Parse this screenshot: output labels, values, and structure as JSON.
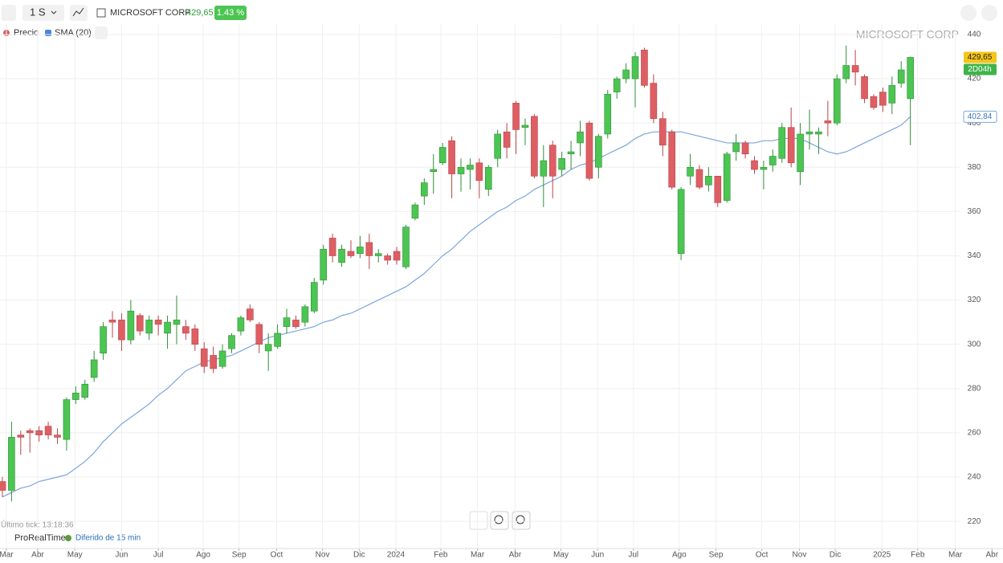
{
  "toolbar": {
    "interval": "1 S",
    "symbol": "MICROSOFT CORP",
    "price": "429,65",
    "change": "1.43 %"
  },
  "footer": {
    "last_tick": "Último tick: 13:18:36",
    "brand": "ProRealTime",
    "delay": "Diferido de 15 min"
  },
  "chart_data": {
    "type": "candlestick",
    "title": "MICROSOFT CORP",
    "name": "Precio",
    "up_color": "#4cc552",
    "down_color": "#dd5f64",
    "open": [
      238,
      234,
      259,
      261,
      261,
      263,
      259,
      257,
      275,
      276,
      285,
      296,
      311,
      311,
      302,
      313,
      305,
      311,
      305,
      309,
      308,
      307,
      298,
      295,
      290,
      298,
      306,
      316,
      309,
      297,
      299,
      308,
      311,
      310,
      315,
      329,
      348,
      337,
      342,
      341,
      346,
      340,
      340,
      342,
      335,
      357,
      367,
      378,
      382,
      392,
      377,
      379,
      382,
      370,
      384,
      396,
      409,
      398,
      403,
      376,
      390,
      379,
      386,
      391,
      400,
      380,
      395,
      414,
      420,
      420,
      433,
      418,
      402,
      396,
      341,
      376,
      379,
      372,
      376,
      365,
      387,
      391,
      383,
      379,
      381,
      384,
      398,
      378,
      395,
      395,
      401,
      400,
      420,
      426,
      421,
      412,
      414,
      409,
      418,
      411
    ],
    "high": [
      240,
      265,
      261,
      262,
      263,
      265,
      262,
      276,
      281,
      284,
      297,
      310,
      315,
      314,
      320,
      314,
      313,
      313,
      313,
      322,
      311,
      309,
      301,
      299,
      300,
      305,
      313,
      318,
      310,
      305,
      309,
      316,
      313,
      318,
      330,
      345,
      350,
      345,
      347,
      349,
      350,
      343,
      341,
      344,
      354,
      364,
      375,
      386,
      391,
      394,
      384,
      384,
      384,
      381,
      397,
      400,
      410,
      402,
      404,
      390,
      392,
      387,
      392,
      401,
      401,
      395,
      415,
      421,
      427,
      432,
      434,
      422,
      405,
      397,
      371,
      386,
      381,
      380,
      376,
      387,
      395,
      392,
      385,
      383,
      388,
      400,
      407,
      400,
      406,
      398,
      410,
      422,
      435,
      433,
      422,
      413,
      416,
      421,
      428,
      430
    ],
    "low": [
      231,
      229,
      250,
      251,
      256,
      257,
      255,
      252,
      273,
      275,
      283,
      293,
      303,
      297,
      300,
      304,
      302,
      304,
      298,
      300,
      302,
      297,
      287,
      287,
      289,
      296,
      304,
      310,
      296,
      288,
      298,
      305,
      307,
      308,
      314,
      327,
      337,
      335,
      339,
      339,
      334,
      337,
      336,
      336,
      334,
      356,
      363,
      368,
      381,
      366,
      369,
      370,
      366,
      367,
      380,
      384,
      386,
      390,
      375,
      362,
      366,
      376,
      379,
      385,
      374,
      375,
      393,
      411,
      418,
      407,
      416,
      400,
      385,
      370,
      338,
      372,
      370,
      369,
      362,
      364,
      383,
      384,
      377,
      370,
      378,
      382,
      380,
      372,
      388,
      386,
      394,
      399,
      418,
      417,
      409,
      406,
      405,
      404,
      416,
      390
    ],
    "close": [
      234,
      258,
      258,
      260,
      259,
      259,
      258,
      275,
      278,
      282,
      293,
      308,
      310,
      302,
      315,
      306,
      311,
      309,
      310,
      311,
      305,
      300,
      290,
      289,
      297,
      304,
      312,
      311,
      300,
      300,
      305,
      312,
      308,
      317,
      328,
      343,
      340,
      343,
      340,
      344,
      340,
      341,
      338,
      338,
      353,
      363,
      373,
      379,
      389,
      377,
      380,
      381,
      374,
      380,
      395,
      389,
      397,
      399,
      376,
      383,
      376,
      384,
      387,
      396,
      375,
      394,
      413,
      420,
      424,
      430,
      417,
      402,
      390,
      371,
      370,
      380,
      371,
      376,
      364,
      386,
      391,
      386,
      379,
      380,
      385,
      398,
      382,
      395,
      396,
      396,
      400,
      420,
      426,
      423,
      411,
      407,
      408,
      417,
      424,
      429.65
    ],
    "sma": {
      "name": "SMA (20)",
      "color": "#7aa6dc",
      "last_label": "402,84",
      "values": [
        231,
        233,
        235,
        236,
        238,
        239,
        240,
        241,
        244,
        247,
        251,
        256,
        260,
        264,
        267,
        270,
        273,
        277,
        280,
        284,
        288,
        290,
        292,
        293,
        294,
        295,
        297,
        299,
        301,
        303,
        304,
        305,
        306,
        307,
        308,
        310,
        311,
        313,
        314,
        316,
        318,
        320,
        322,
        324,
        326,
        329,
        332,
        336,
        340,
        343,
        347,
        351,
        354,
        357,
        360,
        362,
        365,
        367,
        370,
        372,
        374,
        376,
        379,
        381,
        382,
        384,
        386,
        388,
        390,
        393,
        395,
        396,
        396,
        396,
        396,
        395,
        394,
        393,
        392,
        391,
        391,
        391,
        391,
        392,
        392,
        393,
        393,
        393,
        391,
        389,
        387,
        386,
        387,
        389,
        391,
        393,
        395,
        397,
        399,
        402.84
      ]
    },
    "countdown": "2D04h",
    "ylim": [
      207.7,
      444.7
    ],
    "yticks": [
      220,
      240,
      260,
      280,
      300,
      320,
      340,
      360,
      380,
      400,
      420,
      440
    ],
    "xlim": [
      -0.26,
      109.1
    ],
    "xticks": [
      {
        "value": 0.44,
        "label": "Mar"
      },
      {
        "value": 3.85,
        "label": "Abr"
      },
      {
        "value": 7.9,
        "label": "May"
      },
      {
        "value": 13.0,
        "label": "Jun"
      },
      {
        "value": 17.0,
        "label": "Jul"
      },
      {
        "value": 21.9,
        "label": "Ago"
      },
      {
        "value": 25.8,
        "label": "Sep"
      },
      {
        "value": 29.9,
        "label": "Oct"
      },
      {
        "value": 34.9,
        "label": "Nov"
      },
      {
        "value": 38.9,
        "label": "Dic"
      },
      {
        "value": 42.9,
        "label": "2024"
      },
      {
        "value": 47.8,
        "label": "Feb"
      },
      {
        "value": 51.8,
        "label": "Mar"
      },
      {
        "value": 55.9,
        "label": "Abr"
      },
      {
        "value": 60.9,
        "label": "May"
      },
      {
        "value": 64.9,
        "label": "Jun"
      },
      {
        "value": 68.8,
        "label": "Jul"
      },
      {
        "value": 73.8,
        "label": "Ago"
      },
      {
        "value": 77.8,
        "label": "Sep"
      },
      {
        "value": 82.8,
        "label": "Oct"
      },
      {
        "value": 86.9,
        "label": "Nov"
      },
      {
        "value": 90.8,
        "label": "Dic"
      },
      {
        "value": 95.9,
        "label": "2025"
      },
      {
        "value": 99.8,
        "label": "Feb"
      },
      {
        "value": 103.9,
        "label": "Mar"
      },
      {
        "value": 107.9,
        "label": "Abr"
      }
    ],
    "grid": true
  }
}
